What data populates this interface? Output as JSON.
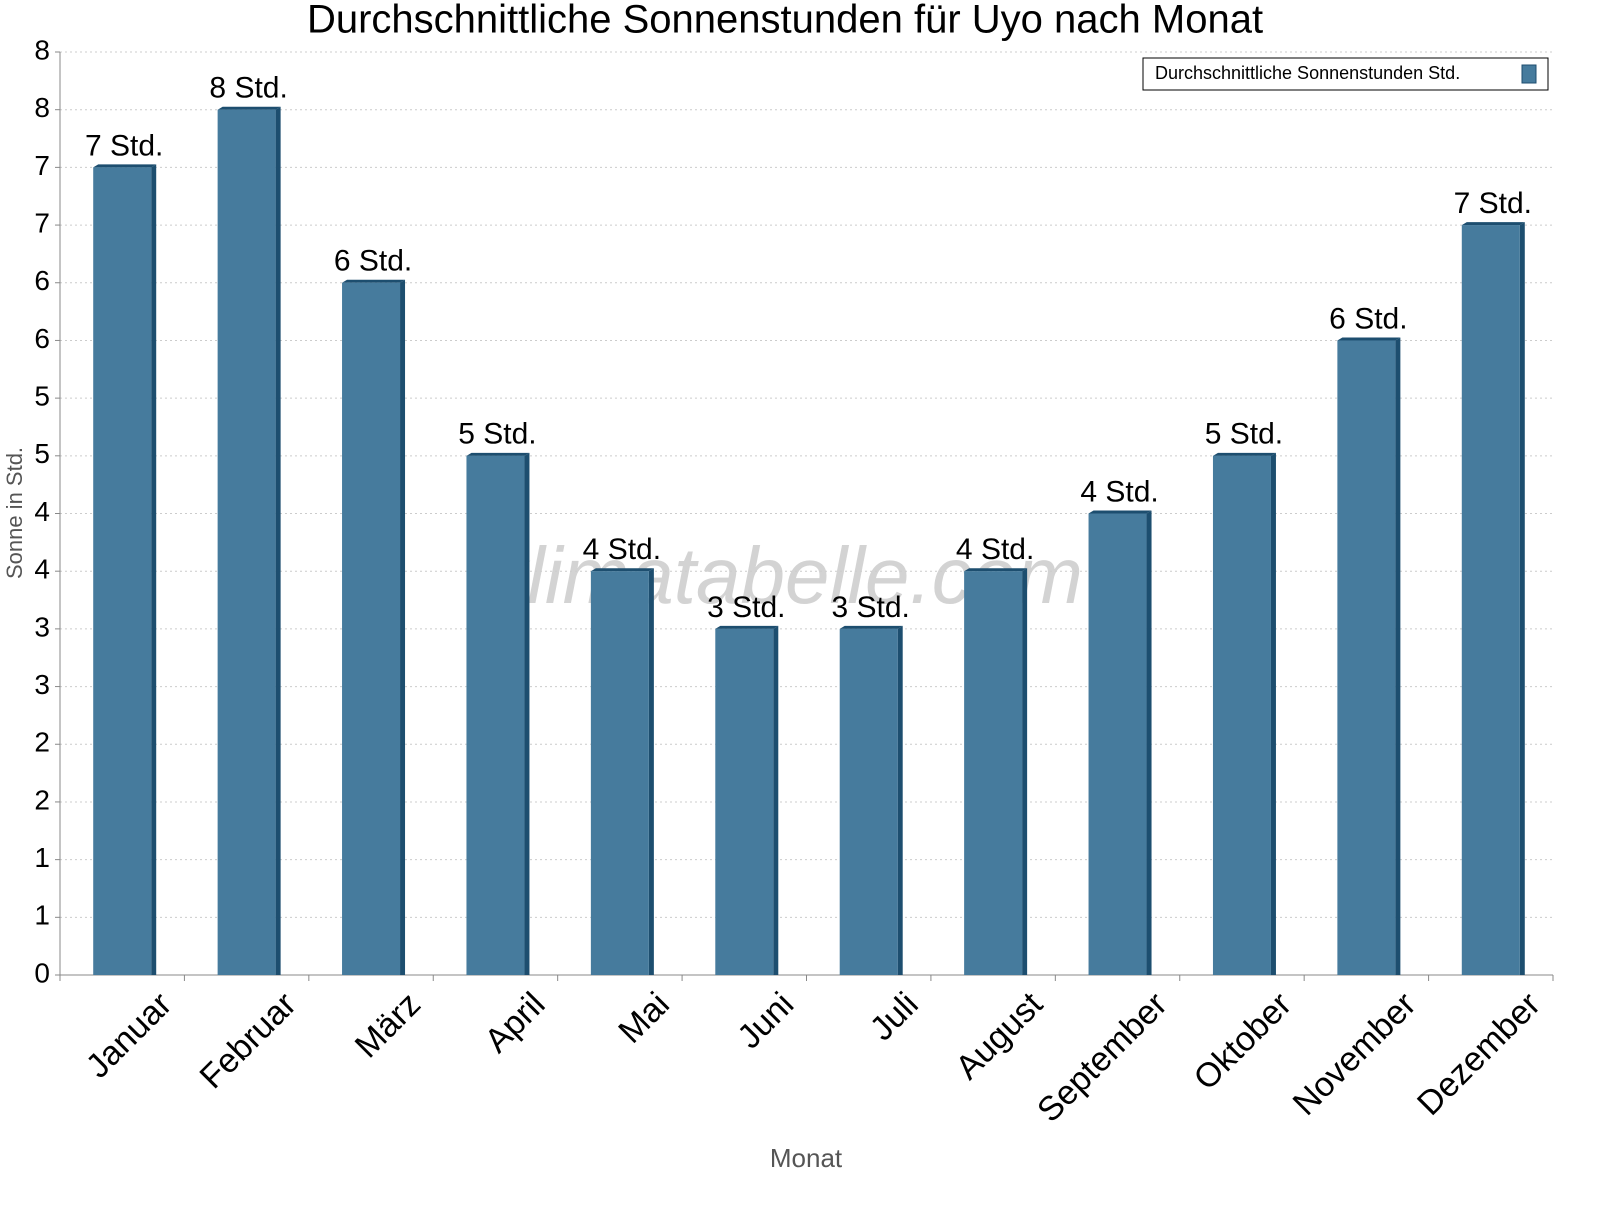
{
  "chart_data": {
    "type": "bar",
    "title": "Durchschnittliche Sonnenstunden für Uyo nach Monat",
    "watermark": "klimatabelle.com",
    "x_label": "Monat",
    "y_label": "Sonne in Std.",
    "categories": [
      "Januar",
      "Februar",
      "März",
      "April",
      "Mai",
      "Juni",
      "Juli",
      "August",
      "September",
      "Oktober",
      "November",
      "Dezember"
    ],
    "series": [
      {
        "name": "Durchschnittliche Sonnenstunden Std.",
        "color": "#467b9d",
        "values": [
          7,
          7.5,
          6,
          4.5,
          3.5,
          3,
          3,
          3.5,
          4,
          4.5,
          5.5,
          6.5
        ],
        "value_labels": [
          "7 Std.",
          "8 Std.",
          "6 Std.",
          "5 Std.",
          "4 Std.",
          "3 Std.",
          "3 Std.",
          "4 Std.",
          "4 Std.",
          "5 Std.",
          "6 Std.",
          "7 Std."
        ]
      }
    ],
    "ylim": [
      0,
      8
    ],
    "yticks": [
      0,
      {
        "value": 0.5,
        "label": "1"
      },
      1,
      {
        "value": 1.5,
        "label": "2"
      },
      2,
      {
        "value": 2.5,
        "label": "3"
      },
      3,
      {
        "value": 3.5,
        "label": "4"
      },
      4,
      {
        "value": 4.5,
        "label": "5"
      },
      5,
      {
        "value": 5.5,
        "label": "6"
      },
      6,
      {
        "value": 6.5,
        "label": "7"
      },
      7,
      {
        "value": 7.5,
        "label": "8"
      },
      8
    ],
    "grid": true,
    "legend": "top-right"
  }
}
